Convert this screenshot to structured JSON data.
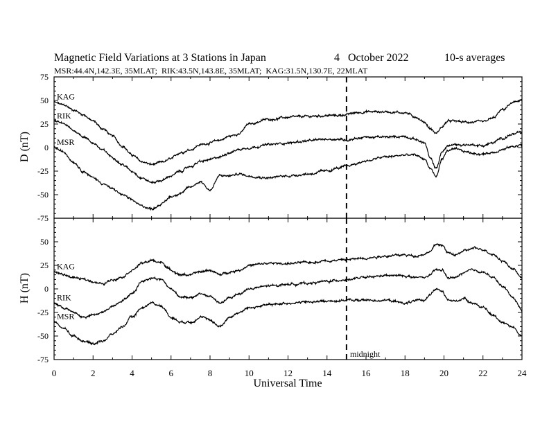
{
  "title": "Magnetic Field Variations at 3 Stations in Japan",
  "date_text": "4   October 2022",
  "averaging": "10-s averages",
  "stations_line": "MSR:44.4N,142.3E, 35MLAT;  RIK:43.5N,143.8E, 35MLAT;  KAG:31.5N,130.7E, 22MLAT",
  "xlabel": "Universal Time",
  "midnight_label": "midnight",
  "colors": {
    "trace": "#000000",
    "background": "#ffffff"
  },
  "chart_data": [
    {
      "type": "line",
      "ylabel": "D (nT)",
      "xlim": [
        0,
        24
      ],
      "ylim": [
        -75,
        75
      ],
      "y_ticks": [
        75,
        50,
        25,
        0,
        -25,
        -50,
        -75
      ],
      "x_ticks": [
        0,
        2,
        4,
        6,
        8,
        10,
        12,
        14,
        16,
        18,
        20,
        22,
        24
      ],
      "midnight_ut": 15,
      "grid": false,
      "series": [
        {
          "name": "KAG",
          "x": [
            0,
            0.5,
            1,
            1.5,
            2,
            2.5,
            3,
            3.5,
            4,
            4.5,
            5,
            5.5,
            6,
            6.5,
            7,
            7.5,
            8,
            8.5,
            9,
            9.5,
            10,
            11,
            12,
            13,
            14,
            14.5,
            15,
            15.5,
            16,
            17,
            18,
            18.5,
            19,
            19.3,
            19.6,
            19.9,
            20.2,
            20.6,
            21,
            21.5,
            22,
            22.5,
            23,
            23.5,
            24
          ],
          "y": [
            48,
            45,
            40,
            35,
            28,
            20,
            12,
            2,
            -8,
            -15,
            -18,
            -16,
            -12,
            -5,
            -2,
            3,
            5,
            8,
            12,
            15,
            25,
            30,
            32,
            33,
            34,
            34,
            35,
            37,
            38,
            38,
            37,
            33,
            27,
            20,
            15,
            22,
            28,
            28,
            27,
            27,
            27,
            31,
            40,
            47,
            51
          ]
        },
        {
          "name": "RIK",
          "x": [
            0,
            0.5,
            1,
            1.5,
            2,
            2.5,
            3,
            3.5,
            4,
            4.5,
            5,
            5.5,
            6,
            6.5,
            7,
            7.5,
            8,
            8.5,
            9,
            9.5,
            10,
            11,
            12,
            13,
            14,
            14.5,
            15,
            15.5,
            16,
            17,
            18,
            18.5,
            19,
            19.3,
            19.6,
            19.9,
            20.2,
            20.6,
            21,
            21.5,
            22,
            22.5,
            23,
            23.5,
            24
          ],
          "y": [
            28,
            25,
            18,
            12,
            5,
            -3,
            -10,
            -18,
            -25,
            -32,
            -37,
            -35,
            -30,
            -25,
            -20,
            -15,
            -13,
            -10,
            -5,
            -2,
            0,
            3,
            5,
            7,
            9,
            9,
            8,
            10,
            11,
            11,
            12,
            9,
            5,
            -12,
            -22,
            -5,
            2,
            3,
            3,
            3,
            2,
            5,
            10,
            14,
            16
          ]
        },
        {
          "name": "MSR",
          "x": [
            0,
            0.5,
            1,
            1.5,
            2,
            2.5,
            3,
            3.5,
            4,
            4.5,
            5,
            5.5,
            6,
            6.5,
            7,
            7.5,
            8,
            8.5,
            9,
            9.5,
            10,
            11,
            12,
            13,
            14,
            14.5,
            15,
            15.5,
            16,
            17,
            18,
            18.5,
            19,
            19.3,
            19.6,
            19.9,
            20.2,
            20.6,
            21,
            21.5,
            22,
            22.5,
            23,
            23.5,
            24
          ],
          "y": [
            0,
            -5,
            -15,
            -25,
            -32,
            -38,
            -44,
            -50,
            -56,
            -62,
            -65,
            -60,
            -52,
            -48,
            -42,
            -36,
            -45,
            -30,
            -30,
            -28,
            -30,
            -32,
            -30,
            -28,
            -25,
            -22,
            -20,
            -17,
            -14,
            -10,
            -8,
            -8,
            -12,
            -22,
            -31,
            -12,
            -3,
            -2,
            -4,
            -6,
            -7,
            -5,
            -2,
            1,
            3
          ]
        }
      ]
    },
    {
      "type": "line",
      "ylabel": "H (nT)",
      "xlim": [
        0,
        24
      ],
      "ylim": [
        -75,
        75
      ],
      "y_ticks": [
        50,
        25,
        0,
        -25,
        -50,
        -75
      ],
      "x_ticks": [
        0,
        2,
        4,
        6,
        8,
        10,
        12,
        14,
        16,
        18,
        20,
        22,
        24
      ],
      "midnight_ut": 15,
      "grid": false,
      "series": [
        {
          "name": "KAG",
          "x": [
            0,
            0.5,
            1,
            1.5,
            2,
            2.5,
            3,
            3.5,
            4,
            4.5,
            5,
            5.5,
            6,
            6.5,
            7,
            7.5,
            8,
            8.5,
            9,
            9.5,
            10,
            11,
            12,
            13,
            14,
            15,
            16,
            17,
            18,
            18.5,
            19,
            19.3,
            19.6,
            19.9,
            20.2,
            20.6,
            21,
            21.5,
            22,
            22.5,
            23,
            23.5,
            24
          ],
          "y": [
            18,
            15,
            12,
            10,
            8,
            5,
            10,
            13,
            20,
            27,
            30,
            28,
            20,
            15,
            15,
            18,
            20,
            15,
            18,
            20,
            25,
            27,
            27,
            28,
            30,
            31,
            33,
            35,
            36,
            35,
            37,
            40,
            47,
            47,
            38,
            36,
            40,
            43,
            42,
            37,
            30,
            22,
            12
          ]
        },
        {
          "name": "RIK",
          "x": [
            0,
            0.5,
            1,
            1.5,
            2,
            2.5,
            3,
            3.5,
            4,
            4.5,
            5,
            5.5,
            6,
            6.5,
            7,
            7.5,
            8,
            8.5,
            9,
            9.5,
            10,
            11,
            12,
            13,
            14,
            15,
            16,
            17,
            18,
            18.5,
            19,
            19.3,
            19.6,
            19.9,
            20.2,
            20.6,
            21,
            21.5,
            22,
            22.5,
            23,
            23.5,
            24
          ],
          "y": [
            -15,
            -20,
            -25,
            -30,
            -28,
            -25,
            -18,
            -12,
            -5,
            8,
            12,
            10,
            0,
            -8,
            -10,
            -5,
            -8,
            -15,
            -10,
            -5,
            0,
            3,
            5,
            6,
            8,
            10,
            12,
            14,
            14,
            12,
            12,
            15,
            20,
            20,
            12,
            12,
            17,
            20,
            18,
            12,
            3,
            -8,
            -22
          ]
        },
        {
          "name": "MSR",
          "x": [
            0,
            0.5,
            1,
            1.5,
            2,
            2.5,
            3,
            3.5,
            4,
            4.5,
            5,
            5.5,
            6,
            6.5,
            7,
            7.5,
            8,
            8.5,
            9,
            9.5,
            10,
            11,
            12,
            13,
            14,
            15,
            16,
            17,
            18,
            18.5,
            19,
            19.3,
            19.6,
            19.9,
            20.2,
            20.6,
            21,
            21.5,
            22,
            22.5,
            23,
            23.5,
            24
          ],
          "y": [
            -35,
            -42,
            -50,
            -55,
            -58,
            -55,
            -48,
            -40,
            -30,
            -20,
            -15,
            -18,
            -30,
            -35,
            -35,
            -30,
            -33,
            -40,
            -30,
            -25,
            -20,
            -17,
            -15,
            -14,
            -13,
            -12,
            -12,
            -12,
            -15,
            -13,
            -12,
            -5,
            0,
            -3,
            -12,
            -13,
            -10,
            -15,
            -20,
            -28,
            -35,
            -40,
            -50
          ]
        }
      ]
    }
  ]
}
